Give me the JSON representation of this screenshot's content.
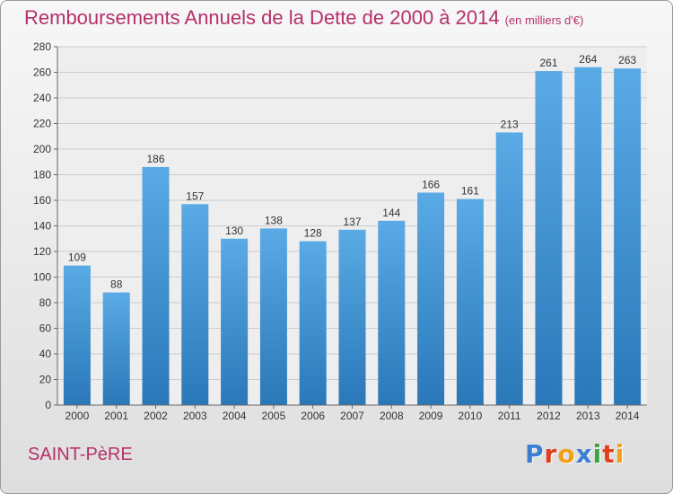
{
  "title": "Remboursements Annuels de la Dette de 2000 à 2014",
  "unit": "(en milliers d'€)",
  "commune": "SAINT-PèRE",
  "logo": {
    "text": "Proxiti",
    "colors": [
      "#3a7fd1",
      "#e0401e",
      "#f2a01b",
      "#3a7fd1",
      "#3aa640",
      "#e0401e",
      "#f2a01b"
    ]
  },
  "chart_data": {
    "type": "bar",
    "title": "Remboursements Annuels de la Dette de 2000 à 2014",
    "subtitle": "(en milliers d'€)",
    "categories": [
      "2000",
      "2001",
      "2002",
      "2003",
      "2004",
      "2005",
      "2006",
      "2007",
      "2008",
      "2009",
      "2010",
      "2011",
      "2012",
      "2013",
      "2014"
    ],
    "values": [
      109,
      88,
      186,
      157,
      130,
      138,
      128,
      137,
      144,
      166,
      161,
      213,
      261,
      264,
      263
    ],
    "ylim": [
      0,
      280
    ],
    "yticks": [
      0,
      20,
      40,
      60,
      80,
      100,
      120,
      140,
      160,
      180,
      200,
      220,
      240,
      260,
      280
    ],
    "grid": true,
    "colors": {
      "bar_top": "#5aaae6",
      "bar_bottom": "#2a78b8",
      "grid": "#cccccc"
    }
  }
}
